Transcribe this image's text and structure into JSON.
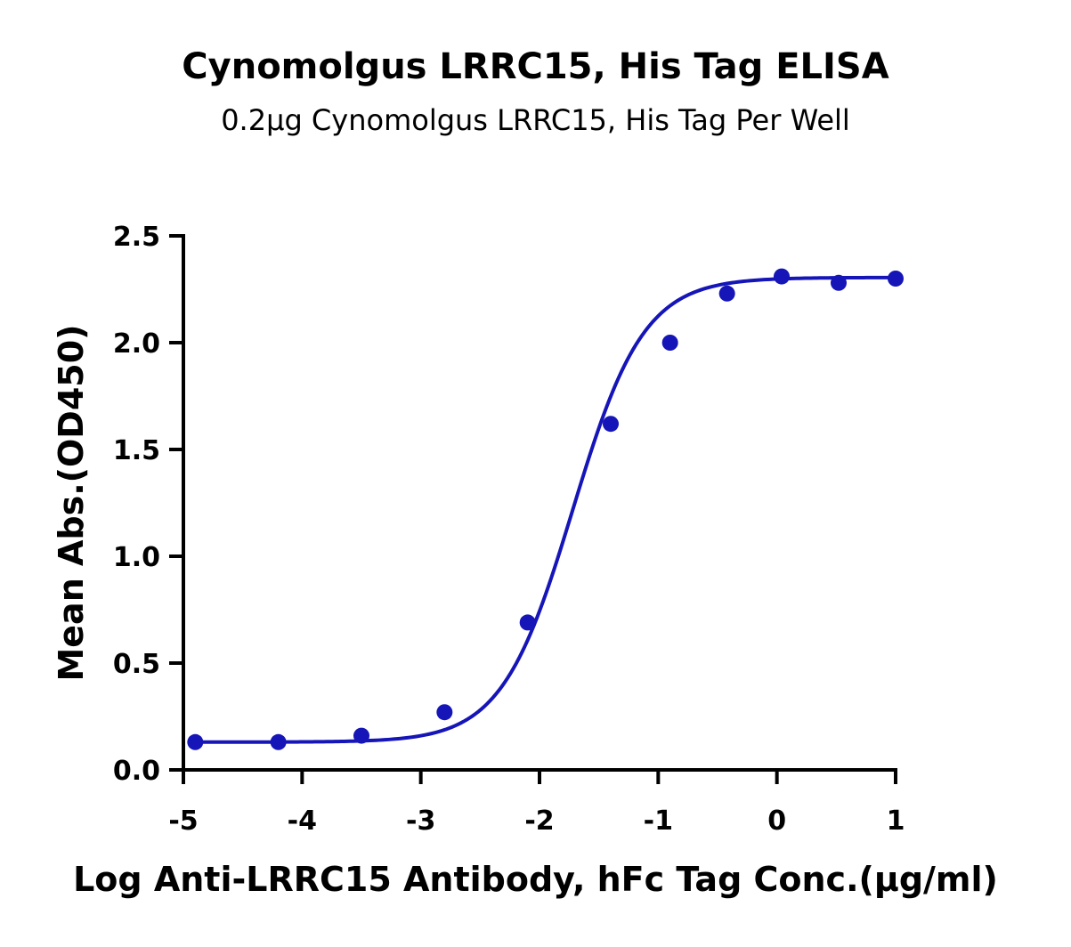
{
  "chart_data": {
    "type": "scatter",
    "title": "Cynomolgus LRRC15, His Tag ELISA",
    "subtitle": "0.2μg Cynomolgus LRRC15, His Tag Per Well",
    "xlabel": "Log Anti-LRRC15 Antibody, hFc Tag Conc.(μg/ml)",
    "ylabel": "Mean Abs.(OD450)",
    "xlim": [
      -5,
      1
    ],
    "ylim": [
      0,
      2.5
    ],
    "xticks": [
      -5,
      -4,
      -3,
      -2,
      -1,
      0,
      1
    ],
    "xtick_labels": [
      "-5",
      "-4",
      "-3",
      "-2",
      "-1",
      "0",
      "1"
    ],
    "yticks": [
      0,
      0.5,
      1.0,
      1.5,
      2.0,
      2.5
    ],
    "ytick_labels": [
      "0.0",
      "0.5",
      "1.0",
      "1.5",
      "2.0",
      "2.5"
    ],
    "grid": false,
    "legend": "none",
    "series": [
      {
        "color": "#1515b8",
        "x": [
          -4.9,
          -4.2,
          -3.5,
          -2.8,
          -2.1,
          -1.4,
          -0.9,
          -0.42,
          0.04,
          0.52,
          1.0
        ],
        "values": [
          0.13,
          0.13,
          0.16,
          0.27,
          0.69,
          1.62,
          2.0,
          2.23,
          2.31,
          2.28,
          2.3
        ]
      }
    ],
    "fit_curve": {
      "model": "4PL",
      "bottom": 0.13,
      "top": 2.305,
      "logEC50": -1.72,
      "hill": 1.45,
      "color": "#1515b8"
    }
  }
}
